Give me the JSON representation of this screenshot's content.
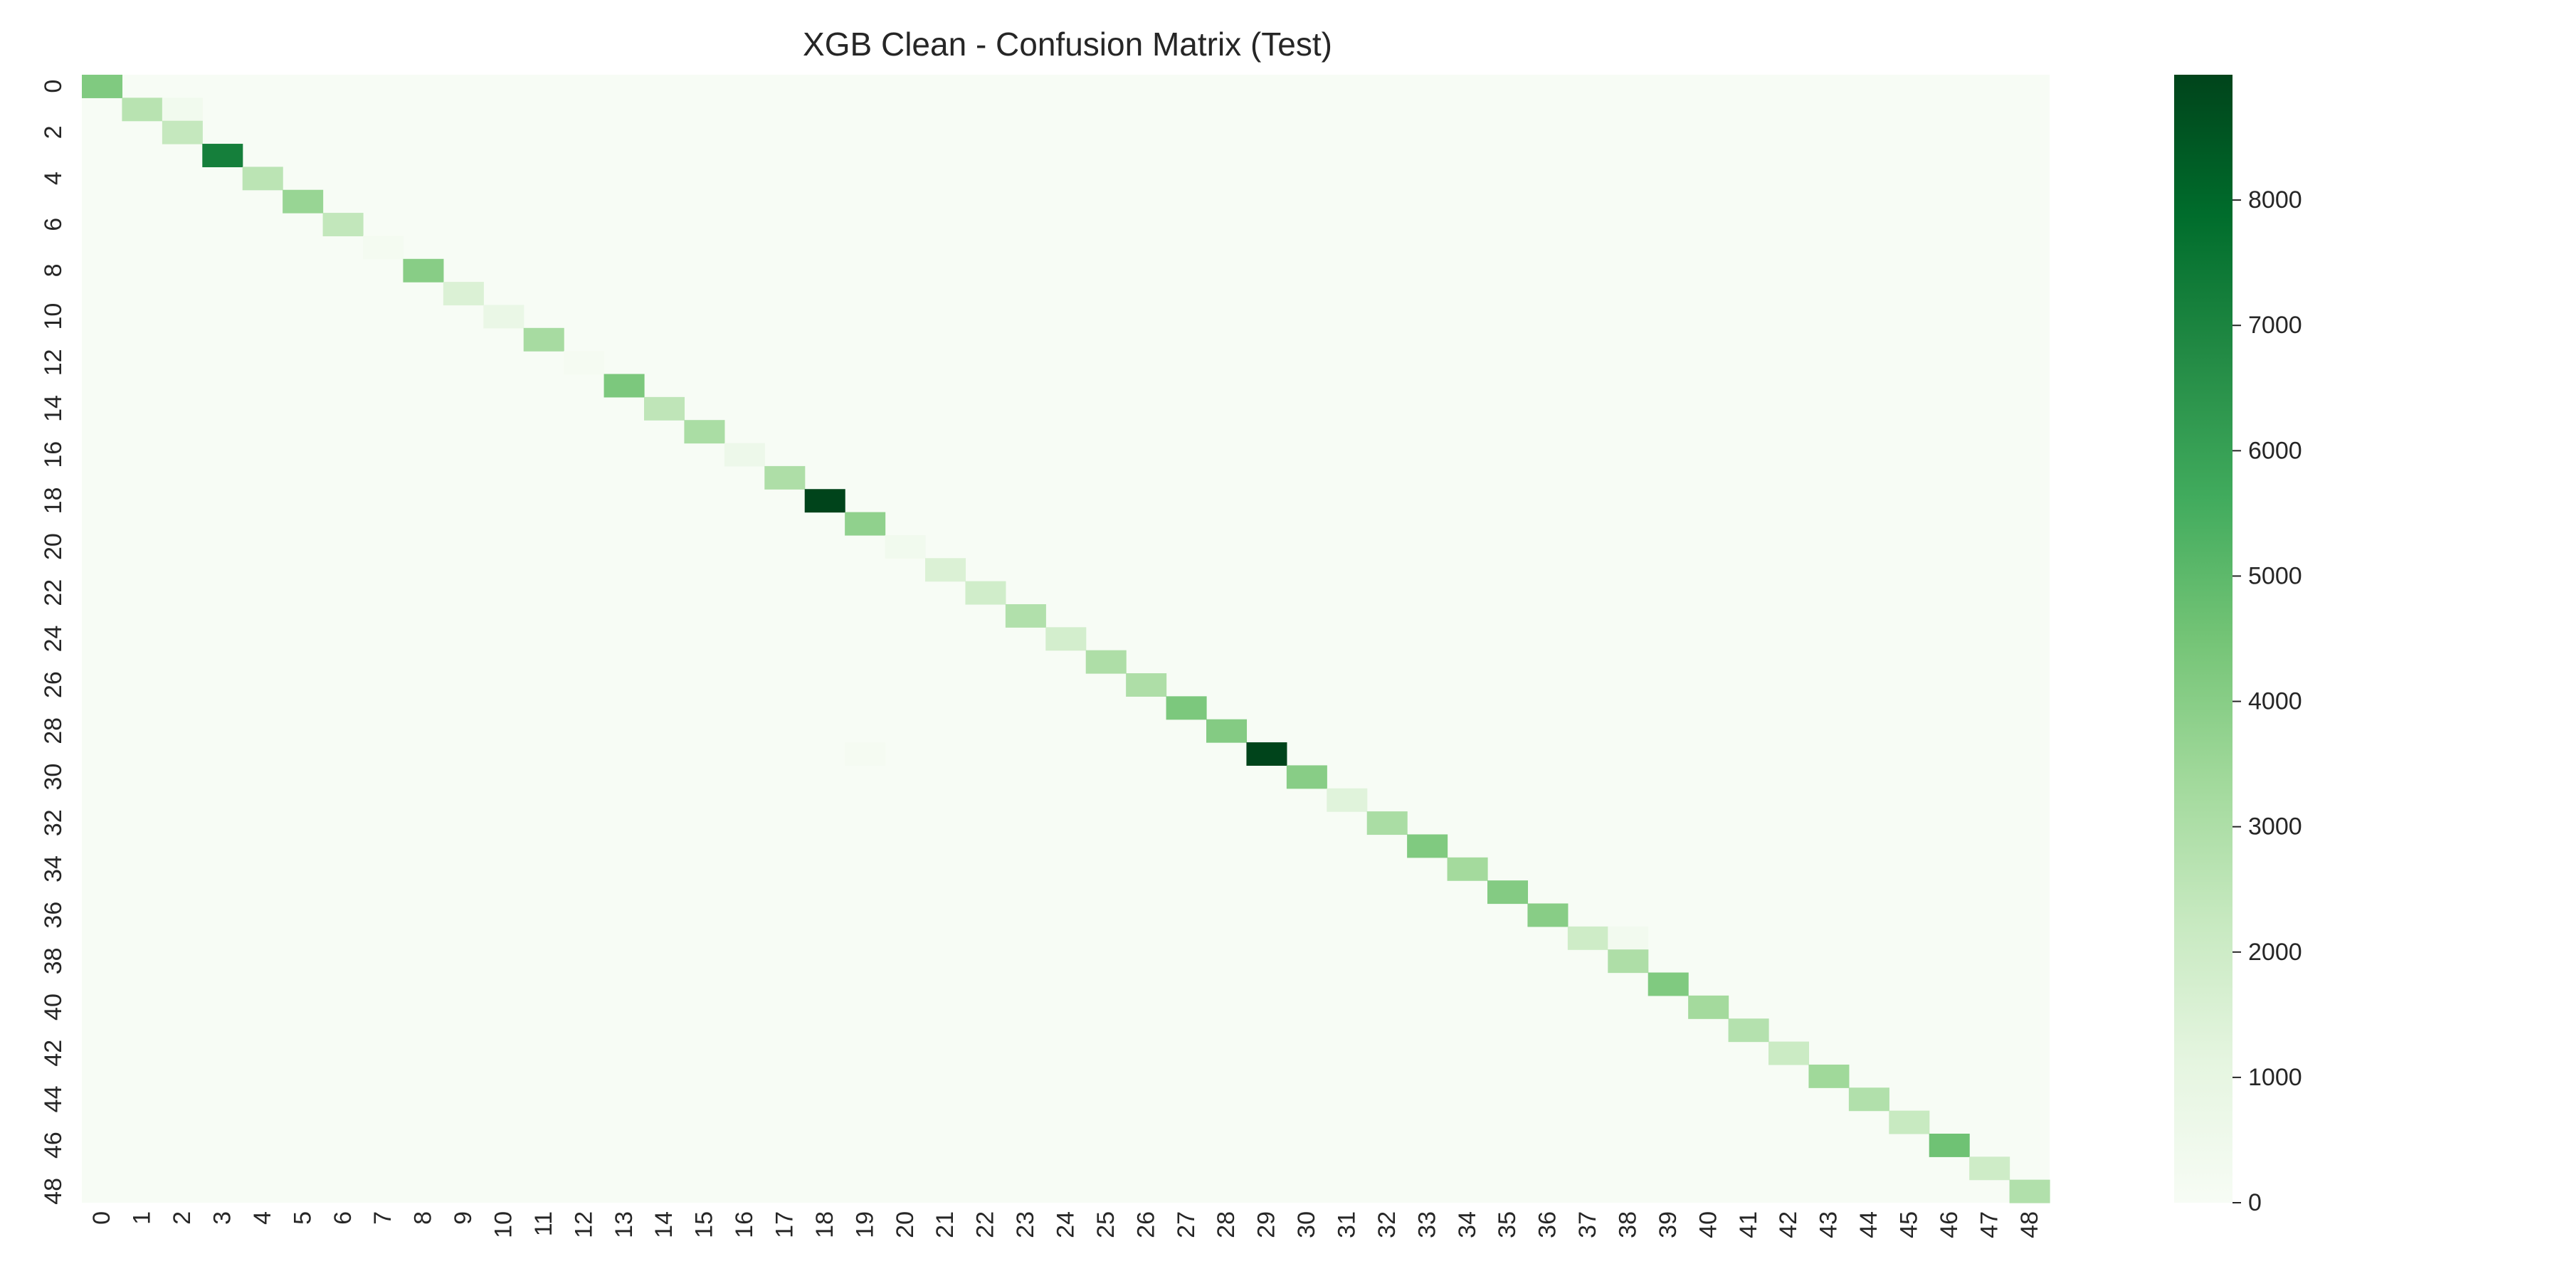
{
  "chart_data": {
    "type": "heatmap",
    "title": "XGB Clean - Confusion Matrix (Test)",
    "xlabel": "",
    "ylabel": "",
    "categories": [
      "0",
      "1",
      "2",
      "3",
      "4",
      "5",
      "6",
      "7",
      "8",
      "9",
      "10",
      "11",
      "12",
      "13",
      "14",
      "15",
      "16",
      "17",
      "18",
      "19",
      "20",
      "21",
      "22",
      "23",
      "24",
      "25",
      "26",
      "27",
      "28",
      "29",
      "30",
      "31",
      "32",
      "33",
      "34",
      "35",
      "36",
      "37",
      "38",
      "39",
      "40",
      "41",
      "42",
      "43",
      "44",
      "45",
      "46",
      "47",
      "48"
    ],
    "x_tick_labels": [
      "0",
      "1",
      "2",
      "3",
      "4",
      "5",
      "6",
      "7",
      "8",
      "9",
      "10",
      "11",
      "12",
      "13",
      "14",
      "15",
      "16",
      "17",
      "18",
      "19",
      "20",
      "21",
      "22",
      "23",
      "24",
      "25",
      "26",
      "27",
      "28",
      "29",
      "30",
      "31",
      "32",
      "33",
      "34",
      "35",
      "36",
      "37",
      "38",
      "39",
      "40",
      "41",
      "42",
      "43",
      "44",
      "45",
      "46",
      "47",
      "48"
    ],
    "y_tick_labels": [
      "0",
      "2",
      "4",
      "6",
      "8",
      "10",
      "12",
      "14",
      "16",
      "18",
      "20",
      "22",
      "24",
      "26",
      "28",
      "30",
      "32",
      "34",
      "36",
      "38",
      "40",
      "42",
      "44",
      "46",
      "48"
    ],
    "diagonal_values": [
      4200,
      2700,
      2300,
      7200,
      2600,
      3600,
      2400,
      200,
      4000,
      1500,
      800,
      3200,
      150,
      4300,
      2500,
      3100,
      600,
      3000,
      9000,
      3800,
      400,
      1500,
      1900,
      2900,
      1800,
      3000,
      3000,
      4300,
      4100,
      9000,
      4000,
      1300,
      3100,
      4200,
      3300,
      4100,
      4000,
      2000,
      3000,
      4200,
      3300,
      2800,
      2100,
      3400,
      2900,
      2200,
      4600,
      2000,
      2900
    ],
    "off_diagonal": [
      {
        "row": 1,
        "col": 2,
        "value": 400
      },
      {
        "row": 37,
        "col": 38,
        "value": 300
      },
      {
        "row": 29,
        "col": 19,
        "value": 150
      }
    ],
    "background_value": 0,
    "colorbar": {
      "min": 0,
      "max": 9000,
      "ticks": [
        0,
        1000,
        2000,
        3000,
        4000,
        5000,
        6000,
        7000,
        8000
      ],
      "tick_labels": [
        "0",
        "1000",
        "2000",
        "3000",
        "4000",
        "5000",
        "6000",
        "7000",
        "8000"
      ],
      "colormap": "Greens",
      "colors": [
        "#f7fcf5",
        "#e5f5e0",
        "#c7e9c0",
        "#a1d99b",
        "#74c476",
        "#41ab5d",
        "#238b45",
        "#006d2c",
        "#00441b"
      ]
    },
    "legend_position": "right",
    "grid": false
  }
}
